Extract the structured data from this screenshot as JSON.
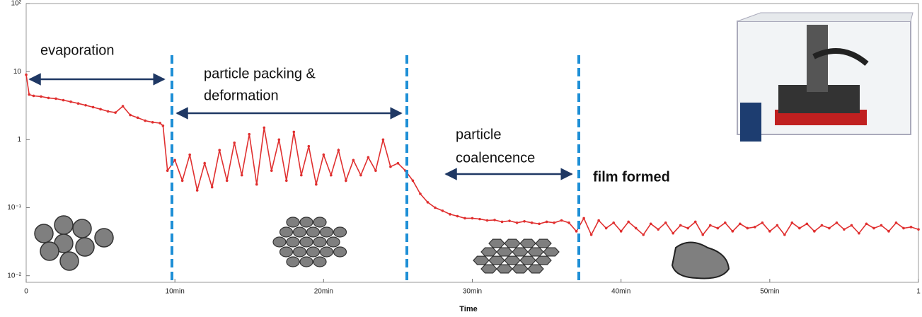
{
  "chart_data": {
    "type": "line",
    "log_y": true,
    "color": "#e03030",
    "x_label": "Time",
    "xlim": [
      0,
      60
    ],
    "xticks": [
      0,
      {
        "value": 10,
        "label": "10min"
      },
      {
        "value": 20,
        "label": "20min"
      },
      {
        "value": 30,
        "label": "30min"
      },
      {
        "value": 40,
        "label": "40min"
      },
      {
        "value": 50,
        "label": "50min"
      },
      {
        "value": 60,
        "label": "1"
      }
    ],
    "ylim": [
      0.008,
      100
    ],
    "yticks": [
      {
        "value": 0.01,
        "label": "10⁻²"
      },
      {
        "value": 0.1,
        "label": "10⁻¹"
      },
      1,
      10,
      {
        "value": 100,
        "label": "10²"
      }
    ],
    "annotations": [
      "evaporation",
      "particle packing &",
      "deformation",
      "particle",
      "coalencence",
      "film formed"
    ],
    "x": [
      0,
      0.2,
      0.5,
      1,
      1.5,
      2,
      2.5,
      3,
      3.5,
      4,
      4.5,
      5,
      5.5,
      6,
      6.5,
      7,
      7.5,
      8,
      8.5,
      9,
      9.2,
      9.5,
      10,
      10.5,
      11,
      11.5,
      12,
      12.5,
      13,
      13.5,
      14,
      14.5,
      15,
      15.5,
      16,
      16.5,
      17,
      17.5,
      18,
      18.5,
      19,
      19.5,
      20,
      20.5,
      21,
      21.5,
      22,
      22.5,
      23,
      23.5,
      24,
      24.5,
      25,
      25.5,
      26,
      26.5,
      27,
      27.5,
      28,
      28.5,
      29,
      29.5,
      30,
      30.5,
      31,
      31.5,
      32,
      32.5,
      33,
      33.5,
      34,
      34.5,
      35,
      35.5,
      36,
      36.5,
      37,
      37.5,
      38,
      38.5,
      39,
      39.5,
      40,
      40.5,
      41,
      41.5,
      42,
      42.5,
      43,
      43.5,
      44,
      44.5,
      45,
      45.5,
      46,
      46.5,
      47,
      47.5,
      48,
      48.5,
      49,
      49.5,
      50,
      50.5,
      51,
      51.5,
      52,
      52.5,
      53,
      53.5,
      54,
      54.5,
      55,
      55.5,
      56,
      56.5,
      57,
      57.5,
      58,
      58.5,
      59,
      59.5,
      60
    ],
    "values": [
      9.0,
      4.6,
      4.4,
      4.3,
      4.1,
      4.0,
      3.8,
      3.6,
      3.4,
      3.2,
      3.0,
      2.8,
      2.6,
      2.5,
      3.1,
      2.3,
      2.1,
      1.9,
      1.8,
      1.75,
      1.6,
      0.35,
      0.5,
      0.25,
      0.6,
      0.18,
      0.45,
      0.2,
      0.7,
      0.25,
      0.9,
      0.3,
      1.2,
      0.22,
      1.5,
      0.35,
      1.0,
      0.25,
      1.3,
      0.3,
      0.8,
      0.22,
      0.6,
      0.3,
      0.7,
      0.25,
      0.5,
      0.3,
      0.55,
      0.35,
      1.0,
      0.4,
      0.45,
      0.35,
      0.25,
      0.16,
      0.12,
      0.1,
      0.09,
      0.08,
      0.075,
      0.07,
      0.07,
      0.068,
      0.065,
      0.066,
      0.062,
      0.064,
      0.06,
      0.063,
      0.06,
      0.058,
      0.062,
      0.06,
      0.065,
      0.06,
      0.045,
      0.07,
      0.04,
      0.065,
      0.05,
      0.06,
      0.045,
      0.062,
      0.05,
      0.04,
      0.058,
      0.048,
      0.06,
      0.042,
      0.055,
      0.05,
      0.062,
      0.04,
      0.055,
      0.05,
      0.06,
      0.045,
      0.058,
      0.05,
      0.052,
      0.06,
      0.045,
      0.055,
      0.04,
      0.06,
      0.05,
      0.058,
      0.045,
      0.055,
      0.05,
      0.06,
      0.048,
      0.055,
      0.042,
      0.058,
      0.05,
      0.055,
      0.045,
      0.06,
      0.05,
      0.052,
      0.048
    ]
  }
}
